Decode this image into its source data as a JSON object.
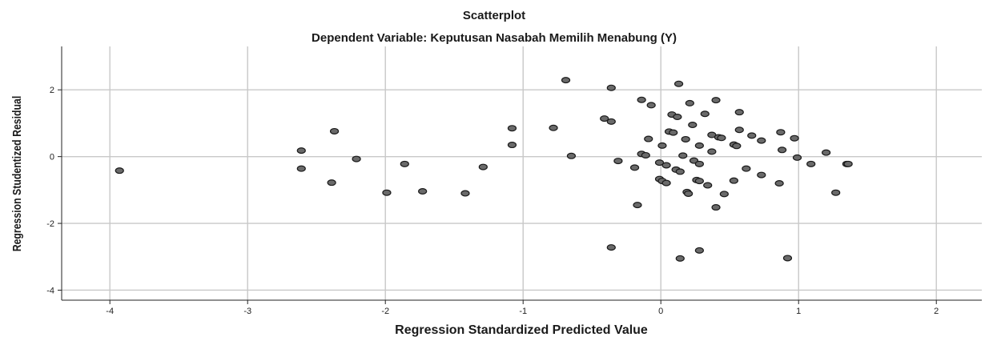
{
  "chart_data": {
    "type": "scatter",
    "title": "Scatterplot",
    "subtitle": "Dependent Variable: Keputusan Nasabah Memilih Menabung (Y)",
    "xlabel": "Regression Standardized Predicted Value",
    "ylabel": "Regression Studentized Residual",
    "xlim": [
      -4.35,
      2.33
    ],
    "ylim": [
      -4.3,
      3.3
    ],
    "x_ticks": [
      -4,
      -3,
      -2,
      -1,
      0,
      1,
      2
    ],
    "x_tick_labels": [
      "-4",
      "-3",
      "-2",
      "-1",
      "0",
      "1",
      "2"
    ],
    "y_ticks": [
      -4,
      -2,
      0,
      2
    ],
    "y_tick_labels": [
      "-4",
      "-2",
      "0",
      "2"
    ],
    "grid": true,
    "legend": "none",
    "colors": {
      "point_fill": "#6a6a6a",
      "point_stroke": "#1a1a1a",
      "grid": "#c8c8c8"
    },
    "points": [
      {
        "x": -3.93,
        "y": -0.42
      },
      {
        "x": -2.61,
        "y": 0.18
      },
      {
        "x": -2.61,
        "y": -0.36
      },
      {
        "x": -2.37,
        "y": 0.76
      },
      {
        "x": -2.39,
        "y": -0.78
      },
      {
        "x": -2.21,
        "y": -0.07
      },
      {
        "x": -1.99,
        "y": -1.08
      },
      {
        "x": -1.86,
        "y": -0.22
      },
      {
        "x": -1.73,
        "y": -1.04
      },
      {
        "x": -1.42,
        "y": -1.1
      },
      {
        "x": -1.29,
        "y": -0.31
      },
      {
        "x": -1.08,
        "y": 0.85
      },
      {
        "x": -1.08,
        "y": 0.35
      },
      {
        "x": -0.78,
        "y": 0.86
      },
      {
        "x": -0.69,
        "y": 2.29
      },
      {
        "x": -0.65,
        "y": 0.02
      },
      {
        "x": -0.41,
        "y": 1.14
      },
      {
        "x": -0.36,
        "y": 1.05
      },
      {
        "x": -0.36,
        "y": 2.06
      },
      {
        "x": -0.36,
        "y": -2.72
      },
      {
        "x": -0.31,
        "y": -0.13
      },
      {
        "x": -0.19,
        "y": -0.33
      },
      {
        "x": -0.17,
        "y": -1.45
      },
      {
        "x": -0.14,
        "y": 1.7
      },
      {
        "x": -0.14,
        "y": 0.08
      },
      {
        "x": -0.11,
        "y": 0.04
      },
      {
        "x": -0.09,
        "y": 0.53
      },
      {
        "x": -0.07,
        "y": 1.54
      },
      {
        "x": -0.01,
        "y": -0.18
      },
      {
        "x": -0.01,
        "y": -0.67
      },
      {
        "x": 0.01,
        "y": -0.73
      },
      {
        "x": 0.01,
        "y": 0.33
      },
      {
        "x": 0.04,
        "y": -0.26
      },
      {
        "x": 0.04,
        "y": -0.79
      },
      {
        "x": 0.06,
        "y": 0.75
      },
      {
        "x": 0.08,
        "y": 1.26
      },
      {
        "x": 0.09,
        "y": 0.72
      },
      {
        "x": 0.11,
        "y": -0.39
      },
      {
        "x": 0.12,
        "y": 1.19
      },
      {
        "x": 0.13,
        "y": 2.18
      },
      {
        "x": 0.14,
        "y": -0.45
      },
      {
        "x": 0.14,
        "y": -3.05
      },
      {
        "x": 0.16,
        "y": 0.03
      },
      {
        "x": 0.18,
        "y": 0.52
      },
      {
        "x": 0.19,
        "y": -1.06
      },
      {
        "x": 0.2,
        "y": -1.11
      },
      {
        "x": 0.21,
        "y": 1.6
      },
      {
        "x": 0.23,
        "y": 0.95
      },
      {
        "x": 0.24,
        "y": -0.12
      },
      {
        "x": 0.26,
        "y": -0.7
      },
      {
        "x": 0.28,
        "y": -0.22
      },
      {
        "x": 0.28,
        "y": -0.73
      },
      {
        "x": 0.28,
        "y": -2.81
      },
      {
        "x": 0.28,
        "y": 0.33
      },
      {
        "x": 0.32,
        "y": 1.28
      },
      {
        "x": 0.34,
        "y": -0.86
      },
      {
        "x": 0.37,
        "y": 0.15
      },
      {
        "x": 0.37,
        "y": 0.65
      },
      {
        "x": 0.4,
        "y": 1.69
      },
      {
        "x": 0.4,
        "y": -1.52
      },
      {
        "x": 0.42,
        "y": 0.58
      },
      {
        "x": 0.44,
        "y": 0.56
      },
      {
        "x": 0.46,
        "y": -1.12
      },
      {
        "x": 0.53,
        "y": 0.36
      },
      {
        "x": 0.53,
        "y": -0.72
      },
      {
        "x": 0.55,
        "y": 0.32
      },
      {
        "x": 0.57,
        "y": 1.33
      },
      {
        "x": 0.57,
        "y": 0.8
      },
      {
        "x": 0.62,
        "y": -0.36
      },
      {
        "x": 0.66,
        "y": 0.63
      },
      {
        "x": 0.73,
        "y": 0.48
      },
      {
        "x": 0.73,
        "y": -0.55
      },
      {
        "x": 0.86,
        "y": -0.8
      },
      {
        "x": 0.87,
        "y": 0.73
      },
      {
        "x": 0.88,
        "y": 0.2
      },
      {
        "x": 0.92,
        "y": -3.04
      },
      {
        "x": 0.97,
        "y": 0.55
      },
      {
        "x": 0.99,
        "y": -0.03
      },
      {
        "x": 1.09,
        "y": -0.22
      },
      {
        "x": 1.2,
        "y": 0.12
      },
      {
        "x": 1.27,
        "y": -1.08
      },
      {
        "x": 1.35,
        "y": -0.22
      },
      {
        "x": 1.36,
        "y": -0.22
      }
    ]
  }
}
